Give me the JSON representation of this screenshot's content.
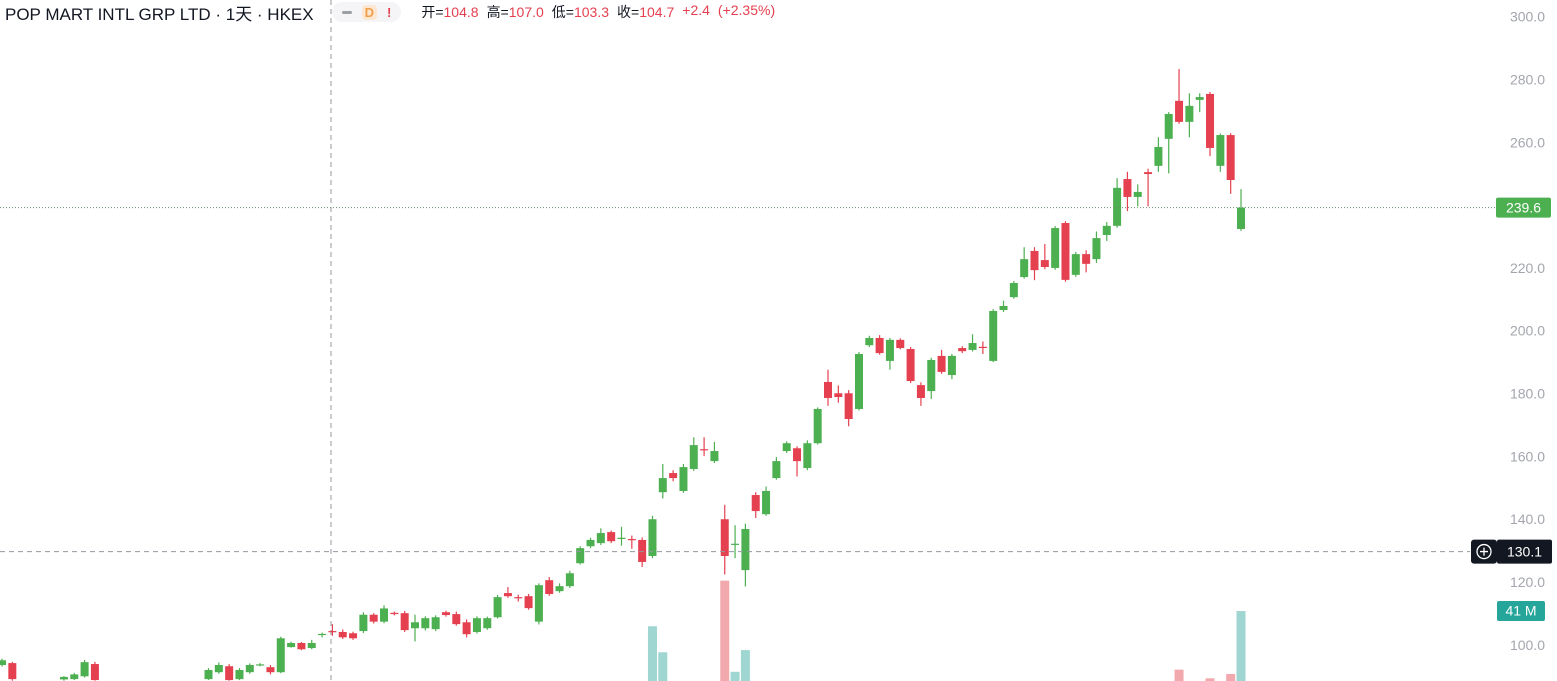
{
  "header": {
    "title": "POP MART INTL GRP LTD · 1天 · HKEX",
    "badges": [
      "D",
      "!"
    ],
    "quote": [
      {
        "label": "开=",
        "value": "104.8"
      },
      {
        "label": "高=",
        "value": "107.0"
      },
      {
        "label": "低=",
        "value": "103.3"
      },
      {
        "label": "收=",
        "value": "104.7"
      }
    ],
    "change": "+2.4",
    "change_percent": "(+2.35%)"
  },
  "chart_data": {
    "type": "candlestick",
    "ylim": [
      88.9,
      305.7
    ],
    "yticks": [
      {
        "value": 100,
        "label": "100.0"
      },
      {
        "value": 120,
        "label": "120.0"
      },
      {
        "value": 140,
        "label": "140.0"
      },
      {
        "value": 160,
        "label": "160.0"
      },
      {
        "value": 180,
        "label": "180.0"
      },
      {
        "value": 200,
        "label": "200.0"
      },
      {
        "value": 220,
        "label": "220.0"
      },
      {
        "value": 240,
        "label": "240.0"
      },
      {
        "value": 260,
        "label": "260.0"
      },
      {
        "value": 280,
        "label": "280.0"
      },
      {
        "value": 300,
        "label": "300.0"
      }
    ],
    "up_color": "#4caf50",
    "down_color": "#e5404f",
    "volume_up_color": "#9fd6d1",
    "volume_down_color": "#f2a9ad",
    "open": [
      94.0,
      94.6,
      null,
      null,
      null,
      null,
      89.4,
      89.5,
      90.4,
      94.3,
      null,
      null,
      null,
      null,
      null,
      null,
      null,
      null,
      null,
      null,
      89.5,
      91.7,
      93.6,
      89.5,
      91.7,
      94.0,
      93.3,
      91.7,
      99.7,
      101.0,
      99.4,
      103.6,
      104.8,
      104.5,
      104.1,
      104.8,
      110.0,
      107.8,
      110.6,
      110.5,
      105.7,
      105.7,
      105.4,
      110.8,
      110.2,
      107.6,
      104.5,
      105.7,
      109.2,
      116.9,
      115.6,
      115.9,
      107.8,
      121.0,
      117.5,
      119.1,
      126.4,
      131.8,
      132.8,
      136.3,
      134.4,
      134.1,
      133.8,
      128.7,
      149.0,
      155.1,
      149.4,
      156.4,
      162.7,
      158.9,
      140.4,
      132.5,
      124.2,
      148.1,
      142.0,
      153.5,
      162.1,
      163.0,
      156.7,
      164.6,
      184.1,
      180.5,
      180.5,
      175.5,
      195.8,
      198.1,
      190.8,
      197.5,
      194.6,
      183.1,
      181.2,
      192.4,
      186.3,
      194.9,
      194.3,
      195.3,
      190.8,
      207.0,
      211.1,
      217.5,
      225.8,
      222.9,
      220.4,
      234.7,
      218.2,
      224.8,
      223.2,
      230.9,
      233.8,
      248.7,
      243.0,
      250.9,
      252.9,
      261.5,
      273.6,
      266.9,
      273.9,
      275.8,
      252.9,
      262.7,
      232.8
    ],
    "high": [
      96.0,
      95.0,
      null,
      null,
      null,
      null,
      90.5,
      91.5,
      95.6,
      95.0,
      null,
      null,
      null,
      null,
      null,
      null,
      null,
      null,
      null,
      null,
      93.0,
      94.8,
      94.3,
      93.0,
      94.5,
      94.6,
      94.0,
      103.0,
      101.4,
      101.3,
      102.0,
      104.3,
      107.0,
      105.3,
      104.6,
      110.8,
      110.5,
      113.0,
      111.0,
      111.2,
      110.0,
      109.5,
      109.8,
      111.3,
      111.0,
      108.5,
      109.5,
      109.4,
      116.3,
      118.8,
      116.4,
      116.6,
      120.0,
      122.0,
      120.0,
      124.0,
      131.8,
      134.5,
      137.5,
      136.8,
      138.0,
      135.2,
      134.6,
      141.5,
      158.0,
      156.0,
      158.0,
      166.5,
      166.5,
      165.0,
      145.0,
      138.5,
      139.0,
      149.0,
      150.8,
      160.2,
      165.2,
      163.6,
      165.5,
      176.0,
      188.0,
      183.0,
      181.5,
      193.6,
      198.8,
      199.0,
      198.1,
      198.0,
      195.2,
      184.0,
      191.8,
      194.3,
      193.0,
      195.5,
      199.3,
      197.0,
      207.3,
      210.0,
      216.2,
      227.0,
      227.0,
      228.0,
      233.7,
      235.3,
      225.5,
      226.0,
      232.0,
      235.0,
      249.0,
      251.0,
      247.0,
      252.0,
      262.0,
      270.0,
      283.7,
      276.0,
      276.0,
      276.4,
      263.2,
      263.3,
      245.5
    ],
    "low": [
      93.5,
      89.0,
      null,
      null,
      null,
      null,
      89.0,
      89.2,
      90.0,
      89.0,
      null,
      null,
      null,
      null,
      null,
      null,
      null,
      null,
      null,
      null,
      89.2,
      91.2,
      89.0,
      89.2,
      91.2,
      93.6,
      91.0,
      91.4,
      99.5,
      98.7,
      99.0,
      102.8,
      103.3,
      102.3,
      102.0,
      104.2,
      107.2,
      107.3,
      109.8,
      104.5,
      101.5,
      105.0,
      104.8,
      109.4,
      106.5,
      102.8,
      104.0,
      105.2,
      108.8,
      115.4,
      114.2,
      111.6,
      106.9,
      116.0,
      117.0,
      118.5,
      126.0,
      131.2,
      132.2,
      132.8,
      132.0,
      131.0,
      125.2,
      128.0,
      147.0,
      152.5,
      148.8,
      155.8,
      160.5,
      158.3,
      122.8,
      128.0,
      119.0,
      140.8,
      141.5,
      153.0,
      161.5,
      154.0,
      156.0,
      164.2,
      176.5,
      177.5,
      170.0,
      175.0,
      195.2,
      192.8,
      188.0,
      194.5,
      183.8,
      176.5,
      178.7,
      186.7,
      185.0,
      193.3,
      193.8,
      193.0,
      190.4,
      206.4,
      210.6,
      217.0,
      216.5,
      220.0,
      219.8,
      216.0,
      217.6,
      219.0,
      222.0,
      229.0,
      233.2,
      238.5,
      240.0,
      240.0,
      251.0,
      250.5,
      266.3,
      262.0,
      270.0,
      256.0,
      251.0,
      244.0,
      232.2
    ],
    "close": [
      95.5,
      89.5,
      null,
      null,
      null,
      null,
      90.2,
      91.0,
      94.9,
      89.2,
      null,
      null,
      null,
      null,
      null,
      null,
      null,
      null,
      null,
      null,
      92.4,
      94.0,
      89.2,
      92.4,
      94.0,
      94.2,
      91.7,
      102.5,
      101.0,
      99.0,
      101.0,
      103.9,
      104.7,
      102.8,
      102.5,
      110.0,
      107.8,
      112.0,
      110.2,
      105.1,
      107.6,
      108.9,
      109.2,
      109.9,
      107.0,
      103.8,
      108.9,
      108.9,
      115.6,
      115.9,
      115.5,
      112.1,
      119.4,
      116.6,
      119.1,
      123.2,
      131.2,
      133.8,
      136.0,
      133.4,
      134.5,
      134.0,
      126.8,
      140.4,
      153.5,
      153.5,
      157.0,
      164.0,
      162.6,
      162.1,
      128.7,
      132.6,
      137.3,
      143.0,
      149.4,
      158.9,
      164.6,
      158.9,
      164.6,
      175.5,
      179.0,
      179.3,
      172.3,
      193.0,
      198.1,
      193.3,
      197.5,
      194.9,
      184.4,
      179.0,
      191.1,
      187.3,
      192.4,
      193.9,
      196.5,
      195.2,
      206.7,
      208.3,
      215.6,
      223.2,
      219.7,
      220.7,
      233.1,
      216.6,
      224.8,
      221.7,
      229.9,
      233.8,
      245.9,
      243.0,
      244.6,
      250.3,
      258.9,
      269.4,
      266.9,
      272.0,
      274.8,
      258.6,
      262.7,
      248.4,
      239.6
    ],
    "volume": [
      null,
      null,
      null,
      null,
      null,
      null,
      null,
      null,
      null,
      null,
      null,
      null,
      null,
      null,
      null,
      null,
      null,
      null,
      null,
      null,
      null,
      null,
      null,
      null,
      null,
      null,
      null,
      null,
      null,
      null,
      null,
      null,
      null,
      null,
      null,
      null,
      null,
      null,
      null,
      null,
      null,
      null,
      null,
      null,
      null,
      null,
      null,
      null,
      null,
      null,
      null,
      null,
      null,
      null,
      null,
      null,
      null,
      null,
      null,
      null,
      null,
      null,
      null,
      34,
      22,
      null,
      null,
      null,
      null,
      null,
      55,
      13,
      23,
      null,
      null,
      null,
      null,
      null,
      null,
      null,
      null,
      null,
      null,
      null,
      null,
      null,
      null,
      null,
      null,
      null,
      null,
      null,
      null,
      null,
      null,
      null,
      null,
      null,
      null,
      null,
      null,
      null,
      null,
      null,
      null,
      null,
      null,
      null,
      null,
      null,
      null,
      null,
      null,
      null,
      14,
      null,
      null,
      10,
      null,
      12,
      41
    ],
    "volume_marker": {
      "value": 41,
      "label": "41 M"
    },
    "last_price": 239.6,
    "crosshair_price": 130.1
  }
}
